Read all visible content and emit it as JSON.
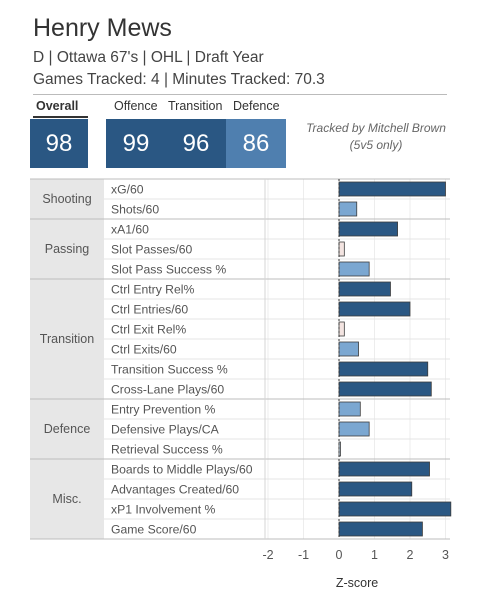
{
  "player": {
    "name": "Henry Mews",
    "line1": "D | Ottawa 67's | OHL | Draft Year",
    "line2": "Games Tracked: 4 | Minutes Tracked: 70.3"
  },
  "scores": {
    "overall_label": "Overall",
    "overall": "98",
    "offence_label": "Offence",
    "offence": "99",
    "transition_label": "Transition",
    "transition": "96",
    "defence_label": "Defence",
    "defence": "86"
  },
  "credit": {
    "line1": "Tracked by Mitchell Brown",
    "line2": "(5v5 only)"
  },
  "colors": {
    "bar_high": "#2a5783",
    "bar_mid": "#7ba7d1",
    "bar_low": "#c9dcee",
    "bar_faint": "#f3e4e1",
    "category_bg": "#e7e7e7"
  },
  "chart_data": {
    "type": "bar",
    "orientation": "horizontal",
    "xlabel": "Z-score",
    "xlim": [
      -2.9,
      3.15
    ],
    "xticks": [
      "-2",
      "-1",
      "0",
      "1",
      "2",
      "3"
    ],
    "xtick_values": [
      -2,
      -1,
      0,
      1,
      2,
      3
    ],
    "groups": [
      {
        "name": "Shooting",
        "metrics": [
          {
            "label": "xG/60",
            "value": 3.0
          },
          {
            "label": "Shots/60",
            "value": 0.5
          }
        ]
      },
      {
        "name": "Passing",
        "metrics": [
          {
            "label": "xA1/60",
            "value": 1.65
          },
          {
            "label": "Slot Passes/60",
            "value": 0.15
          },
          {
            "label": "Slot Pass Success %",
            "value": 0.85
          }
        ]
      },
      {
        "name": "Transition",
        "metrics": [
          {
            "label": "Ctrl Entry Rel%",
            "value": 1.45
          },
          {
            "label": "Ctrl Entries/60",
            "value": 2.0
          },
          {
            "label": "Ctrl Exit Rel%",
            "value": 0.15
          },
          {
            "label": "Ctrl Exits/60",
            "value": 0.55
          },
          {
            "label": "Transition Success %",
            "value": 2.5
          },
          {
            "label": "Cross-Lane Plays/60",
            "value": 2.6
          }
        ]
      },
      {
        "name": "Defence",
        "metrics": [
          {
            "label": "Entry Prevention %",
            "value": 0.6
          },
          {
            "label": "Defensive Plays/CA",
            "value": 0.85
          },
          {
            "label": "Retrieval Success %",
            "value": 0.02
          }
        ]
      },
      {
        "name": "Misc.",
        "metrics": [
          {
            "label": "Boards to Middle Plays/60",
            "value": 2.55
          },
          {
            "label": "Advantages Created/60",
            "value": 2.05
          },
          {
            "label": "xP1 Involvement %",
            "value": 3.15
          },
          {
            "label": "Game Score/60",
            "value": 2.35
          }
        ]
      }
    ]
  }
}
